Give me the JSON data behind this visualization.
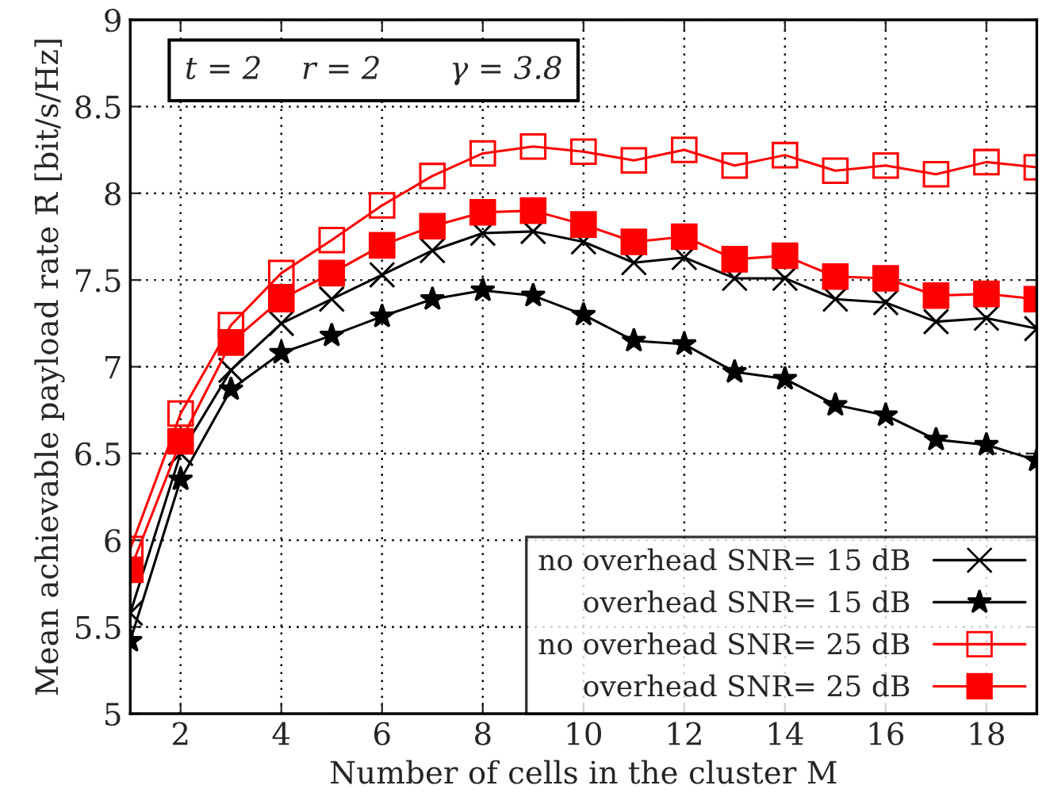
{
  "chart_data": {
    "type": "line",
    "xlabel": "Number of cells in the cluster M",
    "ylabel": "Mean achievable payload rate R̄ [bit/s/Hz]",
    "x": [
      1,
      2,
      3,
      4,
      5,
      6,
      7,
      8,
      9,
      10,
      11,
      12,
      13,
      14,
      15,
      16,
      17,
      18,
      19
    ],
    "series": [
      {
        "name": "no overhead SNR= 15 dB",
        "color": "#000000",
        "marker": "cross",
        "values": [
          5.58,
          6.5,
          6.98,
          7.25,
          7.39,
          7.53,
          7.67,
          7.77,
          7.78,
          7.72,
          7.6,
          7.63,
          7.51,
          7.51,
          7.39,
          7.37,
          7.26,
          7.28,
          7.22
        ]
      },
      {
        "name": "overhead SNR= 15 dB",
        "color": "#000000",
        "marker": "star",
        "values": [
          5.42,
          6.35,
          6.87,
          7.08,
          7.18,
          7.29,
          7.39,
          7.44,
          7.41,
          7.3,
          7.15,
          7.13,
          6.97,
          6.93,
          6.78,
          6.72,
          6.58,
          6.55,
          6.46
        ]
      },
      {
        "name": "no overhead SNR= 25 dB",
        "color": "#ff0000",
        "marker": "square",
        "values": [
          5.95,
          6.73,
          7.24,
          7.54,
          7.73,
          7.93,
          8.1,
          8.23,
          8.27,
          8.24,
          8.19,
          8.25,
          8.16,
          8.22,
          8.13,
          8.16,
          8.11,
          8.18,
          8.15
        ]
      },
      {
        "name": "overhead SNR= 25 dB",
        "color": "#ff0000",
        "marker": "square",
        "values": [
          5.83,
          6.57,
          7.14,
          7.39,
          7.54,
          7.7,
          7.81,
          7.89,
          7.9,
          7.82,
          7.72,
          7.75,
          7.62,
          7.64,
          7.52,
          7.51,
          7.41,
          7.42,
          7.39
        ]
      }
    ],
    "xlim": [
      1,
      19
    ],
    "xticks": [
      2,
      4,
      6,
      8,
      10,
      12,
      14,
      16,
      18
    ],
    "ylim": [
      5,
      9
    ],
    "yticks": [
      5,
      5.5,
      6,
      6.5,
      7,
      7.5,
      8,
      8.5,
      9
    ],
    "grid": true,
    "line_style": "solid",
    "legend": "bottom right",
    "annotations": [
      "t = 2    r = 2       γ = 3.8"
    ]
  }
}
